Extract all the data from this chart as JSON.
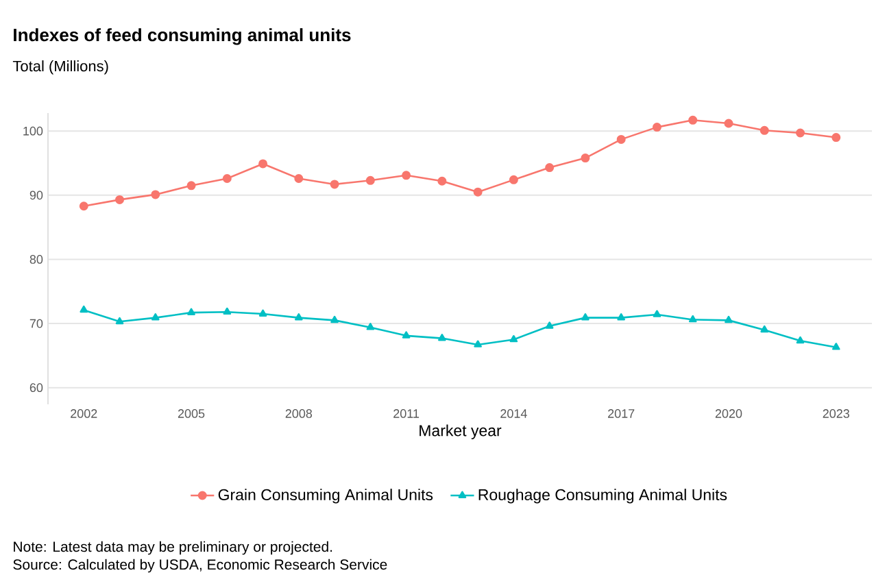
{
  "chart_data": {
    "type": "line",
    "title": "Indexes of feed consuming animal units",
    "subtitle": "Total (Millions)",
    "xlabel": "Market year",
    "x": [
      2002,
      2003,
      2004,
      2005,
      2006,
      2007,
      2008,
      2009,
      2010,
      2011,
      2012,
      2013,
      2014,
      2015,
      2016,
      2017,
      2018,
      2019,
      2020,
      2021,
      2022,
      2023
    ],
    "series": [
      {
        "name": "Grain Consuming Animal Units",
        "color": "#f8766d",
        "marker": "circle",
        "values": [
          88.3,
          89.3,
          90.1,
          91.5,
          92.6,
          94.9,
          92.6,
          91.7,
          92.3,
          93.1,
          92.2,
          90.5,
          92.4,
          94.3,
          95.8,
          98.7,
          100.6,
          101.7,
          101.2,
          100.1,
          99.7,
          99.0
        ]
      },
      {
        "name": "Roughage Consuming Animal Units",
        "color": "#00bfc4",
        "marker": "triangle",
        "values": [
          72.1,
          70.3,
          70.9,
          71.7,
          71.8,
          71.5,
          70.9,
          70.5,
          69.4,
          68.1,
          67.7,
          66.7,
          67.5,
          69.6,
          70.9,
          70.9,
          71.4,
          70.6,
          70.5,
          69.0,
          67.3,
          66.3
        ]
      }
    ],
    "xlim": [
      2001,
      2024
    ],
    "xticks": [
      2002,
      2005,
      2008,
      2011,
      2014,
      2017,
      2020,
      2023
    ],
    "ylim": [
      57.4,
      102.8
    ],
    "yticks": [
      60,
      70,
      80,
      90,
      100
    ],
    "grid": "y",
    "legend": "bottom",
    "annotations": [
      "Note: Latest data may be preliminary or projected.",
      "Source: Calculated by USDA, Economic Research Service"
    ]
  }
}
